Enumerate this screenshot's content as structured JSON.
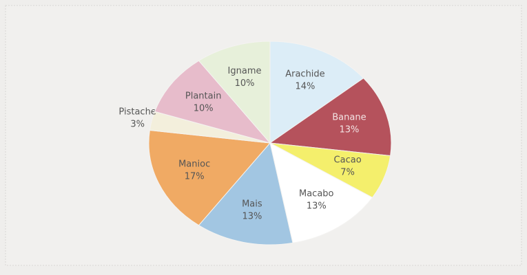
{
  "chart_data": {
    "type": "pie",
    "categories": [
      "Arachide",
      "Banane",
      "Cacao",
      "Macabo",
      "Mais",
      "Manioc",
      "Pistache",
      "Plantain",
      "Igname"
    ],
    "values": [
      14,
      13,
      7,
      13,
      13,
      17,
      3,
      10,
      10
    ],
    "value_labels": [
      "14%",
      "13%",
      "7%",
      "13%",
      "13%",
      "17%",
      "3%",
      "10%",
      "10%"
    ],
    "colors": [
      "#dcedf7",
      "#b5525c",
      "#f4ef6c",
      "#ffffff",
      "#a2c6e2",
      "#f0aa64",
      "#f3efdc",
      "#e7bccb",
      "#e7f0da"
    ]
  }
}
